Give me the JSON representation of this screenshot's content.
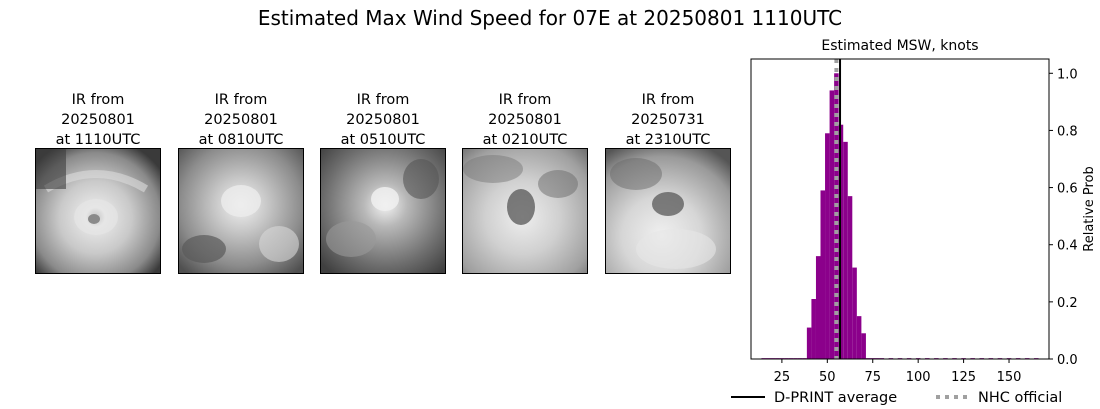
{
  "figure": {
    "title": "Estimated Max Wind Speed for 07E at 20250801 1110UTC"
  },
  "ir_panels": [
    {
      "line1": "IR from",
      "line2": "20250801",
      "line3": "at 1110UTC"
    },
    {
      "line1": "IR from",
      "line2": "20250801",
      "line3": "at 0810UTC"
    },
    {
      "line1": "IR from",
      "line2": "20250801",
      "line3": "at 0510UTC"
    },
    {
      "line1": "IR from",
      "line2": "20250801",
      "line3": "at 0210UTC"
    },
    {
      "line1": "IR from",
      "line2": "20250731",
      "line3": "at 2310UTC"
    }
  ],
  "chart_data": {
    "type": "bar",
    "title": "Estimated MSW, knots",
    "xlabel": "",
    "ylabel": "Relative Prob",
    "xlim": [
      8,
      172
    ],
    "ylim": [
      0,
      1.05
    ],
    "xticks": [
      25,
      50,
      75,
      100,
      125,
      150
    ],
    "yticks": [
      0.0,
      0.2,
      0.4,
      0.6,
      0.8,
      1.0
    ],
    "ytick_labels": [
      "0.0",
      "0.2",
      "0.4",
      "0.6",
      "0.8",
      "1.0"
    ],
    "ytick_side": "right",
    "bin_width": 2.5,
    "bar_color": "#8b008b",
    "bins": [
      {
        "x": 15,
        "y": 0.003
      },
      {
        "x": 17.5,
        "y": 0.003
      },
      {
        "x": 20,
        "y": 0.003
      },
      {
        "x": 22.5,
        "y": 0.003
      },
      {
        "x": 25,
        "y": 0.003
      },
      {
        "x": 27.5,
        "y": 0.003
      },
      {
        "x": 30,
        "y": 0.003
      },
      {
        "x": 32.5,
        "y": 0.003
      },
      {
        "x": 35,
        "y": 0.003
      },
      {
        "x": 37.5,
        "y": 0.003
      },
      {
        "x": 40,
        "y": 0.11
      },
      {
        "x": 42.5,
        "y": 0.21
      },
      {
        "x": 45,
        "y": 0.36
      },
      {
        "x": 47.5,
        "y": 0.59
      },
      {
        "x": 50,
        "y": 0.79
      },
      {
        "x": 52.5,
        "y": 0.94
      },
      {
        "x": 55,
        "y": 1.0
      },
      {
        "x": 57.5,
        "y": 0.82
      },
      {
        "x": 60,
        "y": 0.76
      },
      {
        "x": 62.5,
        "y": 0.57
      },
      {
        "x": 65,
        "y": 0.32
      },
      {
        "x": 67.5,
        "y": 0.15
      },
      {
        "x": 70,
        "y": 0.09
      },
      {
        "x": 72.5,
        "y": 0.003
      },
      {
        "x": 75,
        "y": 0.003
      },
      {
        "x": 77.5,
        "y": 0.003
      },
      {
        "x": 80,
        "y": 0.003
      },
      {
        "x": 85,
        "y": 0.003
      },
      {
        "x": 90,
        "y": 0.003
      },
      {
        "x": 95,
        "y": 0.003
      },
      {
        "x": 100,
        "y": 0.003
      },
      {
        "x": 105,
        "y": 0.003
      },
      {
        "x": 110,
        "y": 0.003
      },
      {
        "x": 115,
        "y": 0.003
      },
      {
        "x": 120,
        "y": 0.003
      },
      {
        "x": 125,
        "y": 0.003
      },
      {
        "x": 130,
        "y": 0.003
      },
      {
        "x": 135,
        "y": 0.003
      },
      {
        "x": 140,
        "y": 0.003
      },
      {
        "x": 145,
        "y": 0.003
      },
      {
        "x": 150,
        "y": 0.003
      },
      {
        "x": 155,
        "y": 0.003
      },
      {
        "x": 160,
        "y": 0.003
      },
      {
        "x": 165,
        "y": 0.003
      }
    ],
    "lines": [
      {
        "name": "D-PRINT average",
        "x": 57,
        "color": "#000000",
        "style": "solid"
      },
      {
        "name": "NHC official",
        "x": 55,
        "color": "#a0a0a0",
        "style": "dotted"
      }
    ],
    "legend": {
      "placement": "bottom"
    }
  }
}
